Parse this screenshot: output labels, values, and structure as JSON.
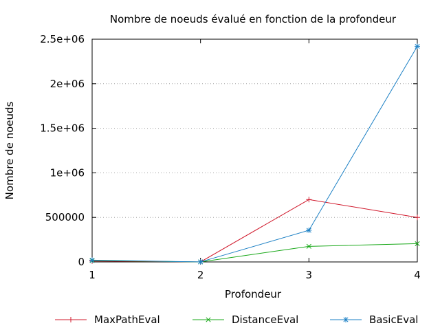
{
  "chart_data": {
    "type": "line",
    "title": "Nombre de noeuds évalué en fonction de la profondeur",
    "xlabel": "Profondeur",
    "ylabel": "Nombre de noeuds",
    "x": [
      1,
      2,
      3,
      4
    ],
    "xlim": [
      1,
      4
    ],
    "ylim": [
      0,
      2500000
    ],
    "x_ticks": [
      "1",
      "2",
      "3",
      "4"
    ],
    "y_ticks": [
      {
        "value": 0,
        "label": "0"
      },
      {
        "value": 500000,
        "label": "500000"
      },
      {
        "value": 1000000,
        "label": "1e+06"
      },
      {
        "value": 1500000,
        "label": "1.5e+06"
      },
      {
        "value": 2000000,
        "label": "2e+06"
      },
      {
        "value": 2500000,
        "label": "2.5e+06"
      }
    ],
    "grid": "horizontal-dotted",
    "legend_position": "bottom",
    "series": [
      {
        "name": "MaxPathEval",
        "color": "#d0182b",
        "marker": "plus",
        "values": [
          10000,
          300,
          700000,
          500000
        ]
      },
      {
        "name": "DistanceEval",
        "color": "#18a818",
        "marker": "cross",
        "values": [
          15000,
          300,
          175000,
          205000
        ]
      },
      {
        "name": "BasicEval",
        "color": "#1a7fc4",
        "marker": "star",
        "values": [
          20000,
          500,
          355000,
          2420000
        ]
      }
    ]
  }
}
